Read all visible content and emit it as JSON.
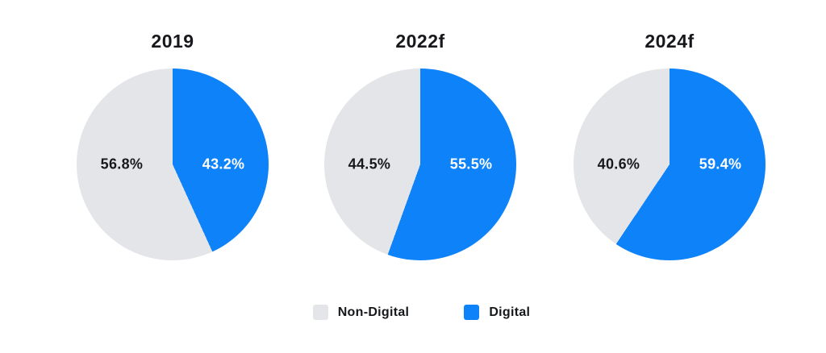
{
  "page": {
    "background": "#FFFFFF"
  },
  "chart_data": {
    "type": "pie",
    "title": "",
    "direction": "clockwise",
    "start_angle": "12 o'clock",
    "legend_position": "bottom",
    "charts": [
      {
        "title": "2019",
        "slices": [
          {
            "name": "Digital",
            "value": 43.2,
            "display": "43.2%"
          },
          {
            "name": "Non-Digital",
            "value": 56.8,
            "display": "56.8%"
          }
        ]
      },
      {
        "title": "2022f",
        "slices": [
          {
            "name": "Digital",
            "value": 55.5,
            "display": "55.5%"
          },
          {
            "name": "Non-Digital",
            "value": 44.5,
            "display": "44.5%"
          }
        ]
      },
      {
        "title": "2024f",
        "slices": [
          {
            "name": "Digital",
            "value": 59.4,
            "display": "59.4%"
          },
          {
            "name": "Non-Digital",
            "value": 40.6,
            "display": "40.6%"
          }
        ]
      }
    ],
    "legend": [
      {
        "label": "Non-Digital",
        "color": "#E4E5E9"
      },
      {
        "label": "Digital",
        "color": "#0E82F8"
      }
    ],
    "text_color": "#17181C",
    "digital_label_color": "#FFFFFF"
  }
}
